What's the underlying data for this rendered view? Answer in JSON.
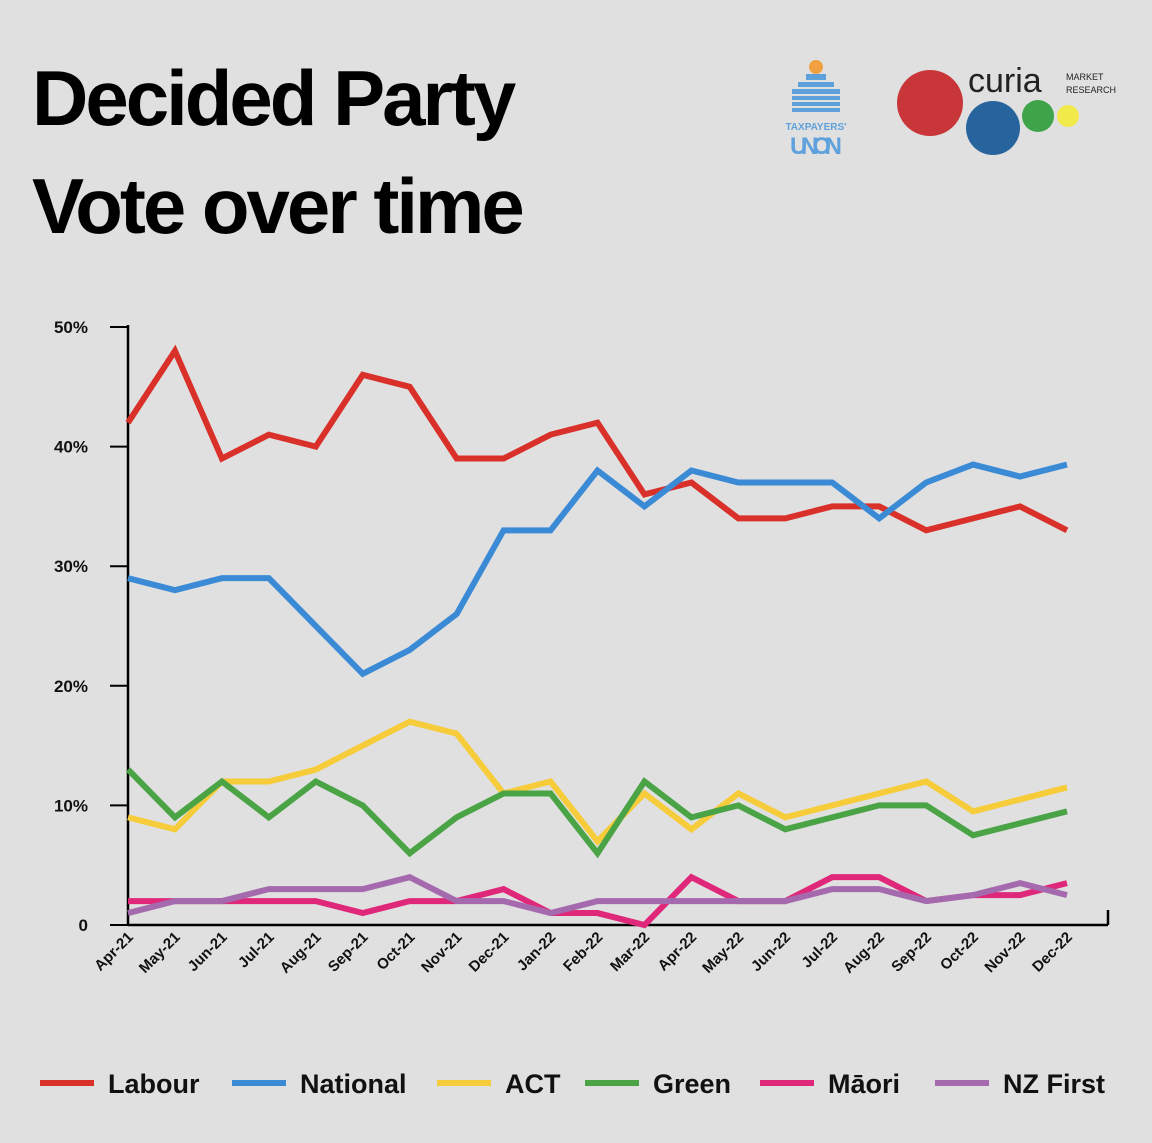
{
  "chart_data": {
    "type": "line",
    "title": [
      "Decided Party",
      "Vote over time"
    ],
    "logos": {
      "taxpayers": [
        "TAXPAYERS'",
        "UNION"
      ],
      "curia": {
        "name": "curia",
        "tagline": [
          "MARKET",
          "RESEARCH"
        ]
      }
    },
    "categories": [
      "Apr-21",
      "May-21",
      "Jun-21",
      "Jul-21",
      "Aug-21",
      "Sep-21",
      "Oct-21",
      "Nov-21",
      "Dec-21",
      "Jan-22",
      "Feb-22",
      "Mar-22",
      "Apr-22",
      "May-22",
      "Jun-22",
      "Jul-22",
      "Aug-22",
      "Sep-22",
      "Oct-22",
      "Nov-22",
      "Dec-22"
    ],
    "ylim": [
      0,
      50
    ],
    "yticks": [
      0,
      {
        "value": 10,
        "label": "10%"
      },
      {
        "value": 20,
        "label": "20%"
      },
      {
        "value": 30,
        "label": "30%"
      },
      {
        "value": 40,
        "label": "40%"
      },
      {
        "value": 50,
        "label": "50%"
      }
    ],
    "grid": false,
    "legend": "bottom",
    "series": [
      {
        "name": "Labour",
        "color": "#d9302a",
        "values": [
          42,
          48,
          39,
          41,
          40,
          46,
          45,
          39,
          39,
          41,
          42,
          36,
          37,
          34,
          34,
          35,
          35,
          33,
          34,
          35,
          33
        ]
      },
      {
        "name": "National",
        "color": "#3b8ad6",
        "values": [
          29,
          28,
          29,
          29,
          25,
          21,
          23,
          26,
          33,
          33,
          38,
          35,
          38,
          37,
          37,
          37,
          34,
          37,
          38.5,
          37.5,
          38.5
        ]
      },
      {
        "name": "ACT",
        "color": "#f7cc3a",
        "values": [
          9,
          8,
          12,
          12,
          13,
          15,
          17,
          16,
          11,
          12,
          7,
          11,
          8,
          11,
          9,
          10,
          11,
          12,
          9.5,
          10.5,
          11.5
        ]
      },
      {
        "name": "Green",
        "color": "#4aa446",
        "values": [
          13,
          9,
          12,
          9,
          12,
          10,
          6,
          9,
          11,
          11,
          6,
          12,
          9,
          10,
          8,
          9,
          10,
          10,
          7.5,
          8.5,
          9.5
        ]
      },
      {
        "name": "Māori",
        "color": "#e0287a",
        "values": [
          2,
          2,
          2,
          2,
          2,
          1,
          2,
          2,
          3,
          1,
          1,
          0,
          4,
          2,
          2,
          4,
          4,
          2,
          2.5,
          2.5,
          3.5
        ]
      },
      {
        "name": "NZ First",
        "color": "#a56aae",
        "values": [
          1,
          2,
          2,
          3,
          3,
          3,
          4,
          2,
          2,
          1,
          2,
          2,
          2,
          2,
          2,
          3,
          3,
          2,
          2.5,
          3.5,
          2.5
        ]
      }
    ]
  }
}
